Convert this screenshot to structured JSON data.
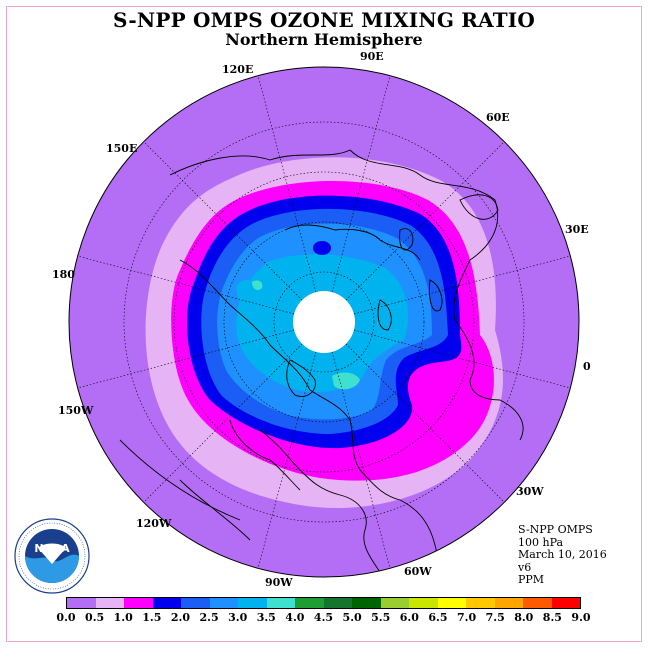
{
  "title": "S-NPP OMPS OZONE MIXING RATIO",
  "subtitle": "Northern Hemisphere",
  "longitude_labels": [
    "90E",
    "60E",
    "30E",
    "0",
    "30W",
    "60W",
    "90W",
    "120W",
    "150W",
    "180",
    "150E",
    "120E"
  ],
  "info": {
    "instrument": "S-NPP OMPS",
    "level": "100 hPa",
    "date": "March 10, 2016",
    "version": "v6",
    "units": "PPM"
  },
  "logo": {
    "name": "noaa-logo",
    "text": "NOAA"
  },
  "colorbar": {
    "ticks": [
      "0.0",
      "0.5",
      "1.0",
      "1.5",
      "2.0",
      "2.5",
      "3.0",
      "3.5",
      "4.0",
      "4.5",
      "5.0",
      "5.5",
      "6.0",
      "6.5",
      "7.0",
      "7.5",
      "8.0",
      "8.5",
      "9.0"
    ],
    "colors": [
      "#b36ef5",
      "#e6b3f5",
      "#ff00ff",
      "#0000ee",
      "#1a5ef5",
      "#1e90ff",
      "#00b2ee",
      "#40e0d0",
      "#1e9e32",
      "#15752c",
      "#006400",
      "#9acd32",
      "#c8e600",
      "#ffff00",
      "#ffc800",
      "#ffa500",
      "#ff5a00",
      "#ff0000",
      "#8b5a3c"
    ]
  },
  "colors": {
    "background": "#b36ef5",
    "frame": "#f0a6cc"
  }
}
